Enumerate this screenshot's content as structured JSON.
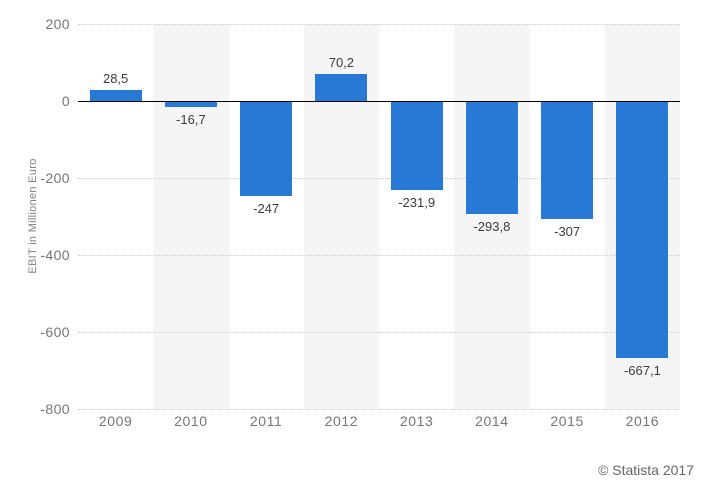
{
  "chart_data": {
    "type": "bar",
    "title": "",
    "xlabel": "",
    "ylabel": "EBIT in Millionen Euro",
    "categories": [
      "2009",
      "2010",
      "2011",
      "2012",
      "2013",
      "2014",
      "2015",
      "2016"
    ],
    "values": [
      28.5,
      -16.7,
      -247,
      70.2,
      -231.9,
      -293.8,
      -307,
      -667.1
    ],
    "value_labels": [
      "28,5",
      "-16,7",
      "-247",
      "70,2",
      "-231,9",
      "-293,8",
      "-307",
      "-667,1"
    ],
    "ylim": [
      -800,
      200
    ],
    "yticks": [
      200,
      0,
      -200,
      -400,
      -600,
      -800
    ],
    "ytick_labels": [
      "200",
      "0",
      "-200",
      "-400",
      "-600",
      "-800"
    ],
    "grid": "horizontal-dotted",
    "legend_position": "none",
    "alternating_column_bands": "behind 2010, 2012, 2014, 2016",
    "colors": {
      "bar": "#2878d6",
      "band": "#f5f5f5",
      "gridline": "#cccccc",
      "zero_line": "#000000",
      "tick_label": "#757575",
      "data_label": "#3c3c3c",
      "axis_title": "#808080",
      "footer_text": "#666666",
      "background": "#ffffff"
    }
  },
  "footer": {
    "copyright": "© Statista 2017"
  }
}
